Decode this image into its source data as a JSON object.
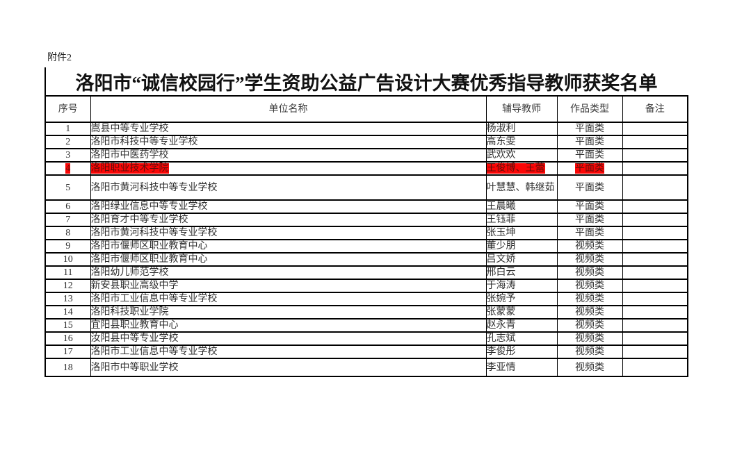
{
  "page": {
    "attachment_label": "附件2",
    "title": "洛阳市“诚信校园行”学生资助公益广告设计大赛优秀指导教师获奖名单"
  },
  "table": {
    "headers": [
      "序号",
      "单位名称",
      "辅导教师",
      "作品类型",
      "备注"
    ],
    "rows": [
      {
        "no": "1",
        "unit": "嵩县中等专业学校",
        "teacher": "杨淑利",
        "type": "平面类",
        "note": "",
        "highlighted": false
      },
      {
        "no": "2",
        "unit": "洛阳市科技中等专业学校",
        "teacher": "高东雯",
        "type": "平面类",
        "note": "",
        "highlighted": false
      },
      {
        "no": "3",
        "unit": "洛阳市中医药学校",
        "teacher": "武欢欢",
        "type": "平面类",
        "note": "",
        "highlighted": false
      },
      {
        "no": "4",
        "unit": "洛阳职业技术学院",
        "teacher": "王俊博、王蕾",
        "type": "平面类",
        "note": "",
        "highlighted": true
      },
      {
        "no": "5",
        "unit": "洛阳市黄河科技中等专业学校",
        "teacher": "叶慧慧、韩继茹",
        "type": "平面类",
        "note": "",
        "highlighted": false
      },
      {
        "no": "6",
        "unit": "洛阳绿业信息中等专业学校",
        "teacher": "王晨曦",
        "type": "平面类",
        "note": "",
        "highlighted": false
      },
      {
        "no": "7",
        "unit": "洛阳育才中等专业学校",
        "teacher": "王钰菲",
        "type": "平面类",
        "note": "",
        "highlighted": false
      },
      {
        "no": "8",
        "unit": "洛阳市黄河科技中等专业学校",
        "teacher": "张玉坤",
        "type": "平面类",
        "note": "",
        "highlighted": false
      },
      {
        "no": "9",
        "unit": "洛阳市偃师区职业教育中心",
        "teacher": "董少朋",
        "type": "视频类",
        "note": "",
        "highlighted": false
      },
      {
        "no": "10",
        "unit": "洛阳市偃师区职业教育中心",
        "teacher": "吕文娇",
        "type": "视频类",
        "note": "",
        "highlighted": false
      },
      {
        "no": "11",
        "unit": "洛阳幼儿师范学校",
        "teacher": "邢白云",
        "type": "视频类",
        "note": "",
        "highlighted": false
      },
      {
        "no": "12",
        "unit": "新安县职业高级中学",
        "teacher": "于海涛",
        "type": "视频类",
        "note": "",
        "highlighted": false
      },
      {
        "no": "13",
        "unit": "洛阳市工业信息中等专业学校",
        "teacher": "张婉予",
        "type": "视频类",
        "note": "",
        "highlighted": false
      },
      {
        "no": "14",
        "unit": "洛阳科技职业学院",
        "teacher": "张蒙蒙",
        "type": "视频类",
        "note": "",
        "highlighted": false
      },
      {
        "no": "15",
        "unit": "宜阳县职业教育中心",
        "teacher": "赵永青",
        "type": "视频类",
        "note": "",
        "highlighted": false
      },
      {
        "no": "16",
        "unit": "汝阳县中等专业学校",
        "teacher": "孔志斌",
        "type": "视频类",
        "note": "",
        "highlighted": false
      },
      {
        "no": "17",
        "unit": "洛阳市工业信息中等专业学校",
        "teacher": "李俊彤",
        "type": "视频类",
        "note": "",
        "highlighted": false
      },
      {
        "no": "18",
        "unit": "洛阳市中等职业学校",
        "teacher": "李亚情",
        "type": "视频类",
        "note": "",
        "highlighted": false
      }
    ]
  },
  "colors": {
    "highlight_bg": "#fb0606",
    "highlight_text": "#5c0f0a",
    "border": "#000000",
    "text": "#2e2e2e"
  }
}
